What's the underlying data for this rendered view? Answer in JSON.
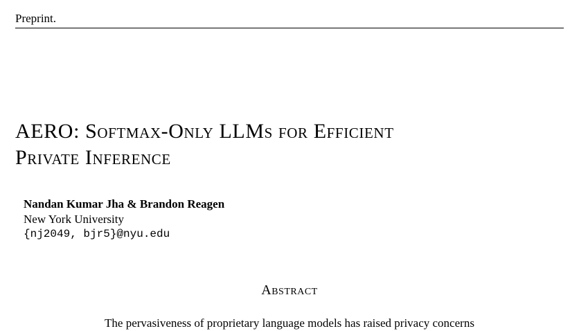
{
  "header": {
    "label": "Preprint."
  },
  "title": {
    "line1": "AERO: Softmax-Only LLMs for Efficient",
    "line2": "Private Inference"
  },
  "authors": {
    "names": "Nandan Kumar Jha & Brandon Reagen",
    "affiliation": "New York University",
    "email": "{nj2049, bjr5}@nyu.edu"
  },
  "abstract": {
    "heading": "Abstract",
    "first_line": "The pervasiveness of proprietary language models has raised privacy concerns"
  }
}
